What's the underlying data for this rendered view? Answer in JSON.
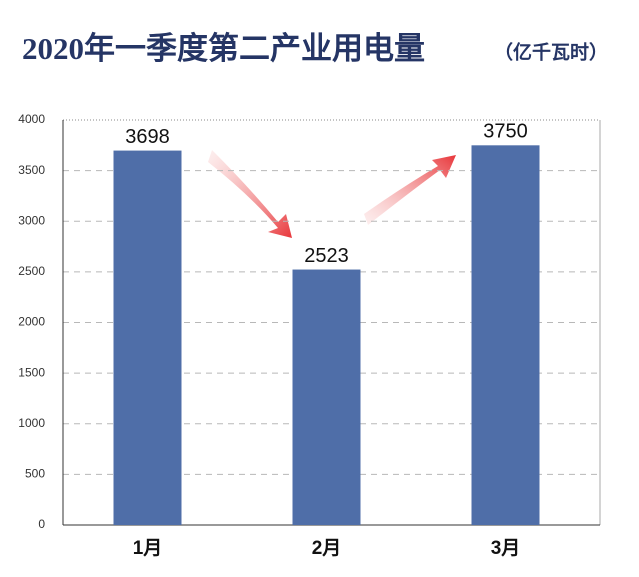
{
  "chart_data": {
    "type": "bar",
    "title": "2020年一季度第二产业用电量",
    "subtitle": "（亿千瓦时）",
    "categories": [
      "1月",
      "2月",
      "3月"
    ],
    "values": [
      3698,
      2523,
      3750
    ],
    "color": "#4f6ea8",
    "ylim": [
      0,
      4000
    ],
    "yticks": [
      0,
      500,
      1000,
      1500,
      2000,
      2500,
      3000,
      3500,
      4000
    ],
    "grid": true
  }
}
